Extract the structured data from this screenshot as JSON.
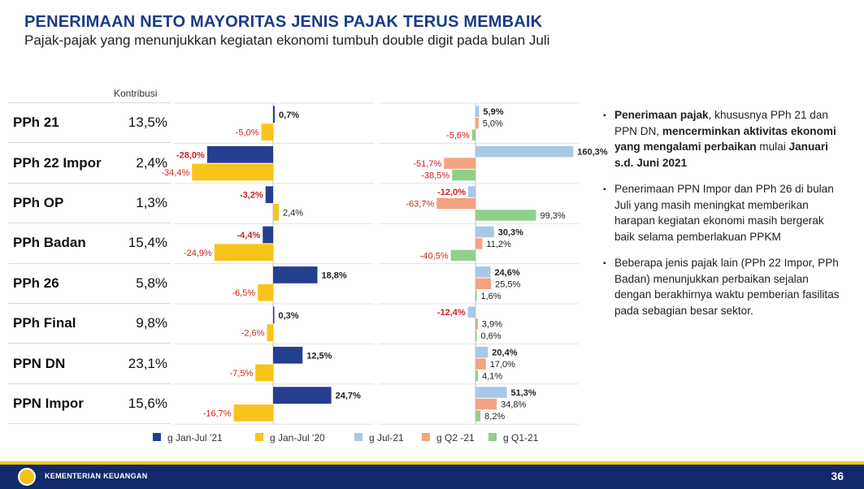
{
  "title": "PENERIMAAN NETO MAYORITAS JENIS PAJAK TERUS MEMBAIK",
  "subtitle": "Pajak-pajak yang menunjukkan kegiatan ekonomi tumbuh double digit pada bulan Juli",
  "kontribusi_header": "Kontribusi",
  "rows": [
    {
      "tax": "PPh 21",
      "kontribusi": "13,5%"
    },
    {
      "tax": "PPh 22 Impor",
      "kontribusi": "2,4%"
    },
    {
      "tax": "PPh OP",
      "kontribusi": "1,3%"
    },
    {
      "tax": "PPh Badan",
      "kontribusi": "15,4%"
    },
    {
      "tax": "PPh 26",
      "kontribusi": "5,8%"
    },
    {
      "tax": "PPh Final",
      "kontribusi": "9,8%"
    },
    {
      "tax": "PPN DN",
      "kontribusi": "23,1%"
    },
    {
      "tax": "PPN Impor",
      "kontribusi": "15,6%"
    }
  ],
  "chart_data": [
    {
      "type": "bar",
      "orientation": "horizontal",
      "categories": [
        "PPh 21",
        "PPh 22 Impor",
        "PPh OP",
        "PPh Badan",
        "PPh 26",
        "PPh Final",
        "PPN DN",
        "PPN Impor"
      ],
      "series": [
        {
          "name": "g Jan-Jul '21",
          "color": "#253f8f",
          "values": [
            0.7,
            -28.0,
            -3.2,
            -4.4,
            18.8,
            0.3,
            12.5,
            24.7
          ],
          "labels": [
            "0,7%",
            "-28,0%",
            "-3,2%",
            "-4,4%",
            "18,8%",
            "0,3%",
            "12,5%",
            "24,7%"
          ]
        },
        {
          "name": "g Jan-Jul '20",
          "color": "#f7c51a",
          "values": [
            -5.0,
            -34.4,
            2.4,
            -24.9,
            -6.5,
            -2.6,
            -7.5,
            -16.7
          ],
          "labels": [
            "-5,0%",
            "-34,4%",
            "2,4%",
            "-24,9%",
            "-6,5%",
            "-2,6%",
            "-7,5%",
            "-16,7%"
          ]
        }
      ]
    },
    {
      "type": "bar",
      "orientation": "horizontal",
      "categories": [
        "PPh 21",
        "PPh 22 Impor",
        "PPh OP",
        "PPh Badan",
        "PPh 26",
        "PPh Final",
        "PPN DN",
        "PPN Impor"
      ],
      "series": [
        {
          "name": "g Jul-21",
          "color": "#a9c8e8",
          "values": [
            5.9,
            160.3,
            -12.0,
            30.3,
            24.6,
            -12.4,
            20.4,
            51.3
          ],
          "labels": [
            "5,9%",
            "160,3%",
            "-12,0%",
            "30,3%",
            "24,6%",
            "-12,4%",
            "20,4%",
            "51,3%"
          ]
        },
        {
          "name": "g Q2 -21",
          "color": "#f4a382",
          "values": [
            5.0,
            -51.7,
            -63.7,
            11.2,
            25.5,
            3.9,
            17.0,
            34.8
          ],
          "labels": [
            "5,0%",
            "-51,7%",
            "-63,7%",
            "11,2%",
            "25,5%",
            "3,9%",
            "17,0%",
            "34,8%"
          ]
        },
        {
          "name": "g Q1-21",
          "color": "#90d08a",
          "values": [
            -5.6,
            -38.5,
            99.3,
            -40.5,
            1.6,
            0.6,
            4.1,
            8.2
          ],
          "labels": [
            "-5,6%",
            "-38,5%",
            "99,3%",
            "-40,5%",
            "1,6%",
            "0,6%",
            "4,1%",
            "8,2%"
          ]
        }
      ]
    }
  ],
  "legend": [
    {
      "label": "g Jan-Jul '21",
      "color": "#253f8f"
    },
    {
      "label": "g Jan-Jul '20",
      "color": "#f7c51a"
    },
    {
      "label": "g Jul-21",
      "color": "#a9c8e8"
    },
    {
      "label": "g Q2 -21",
      "color": "#f4a382"
    },
    {
      "label": "g Q1-21",
      "color": "#90d08a"
    }
  ],
  "bullets": [
    {
      "parts": [
        {
          "t": "Penerimaan pajak",
          "b": true
        },
        {
          "t": ", khususnya PPh 21 dan PPN DN, ",
          "b": false
        },
        {
          "t": "mencerminkan aktivitas ekonomi yang mengalami perbaikan",
          "b": true
        },
        {
          "t": " mulai ",
          "b": false
        },
        {
          "t": "Januari s.d. Juni 2021",
          "b": true
        }
      ]
    },
    {
      "parts": [
        {
          "t": "Penerimaan PPN Impor dan PPh 26 di bulan Juli yang masih meningkat memberikan harapan kegiatan ekonomi masih bergerak baik selama pemberlakuan PPKM",
          "b": false
        }
      ]
    },
    {
      "parts": [
        {
          "t": "Beberapa jenis pajak lain (PPh 22 Impor, PPh Badan) menunjukkan perbaikan sejalan dengan berakhirnya waktu pemberian fasilitas pada sebagian besar sektor.",
          "b": false
        }
      ]
    }
  ],
  "footer": {
    "org": "KEMENTERIAN KEUANGAN",
    "page": "36"
  },
  "colors": {
    "title": "#1b3a8a",
    "negative_label": "#d11f1f",
    "footer_bg": "#12296a"
  }
}
